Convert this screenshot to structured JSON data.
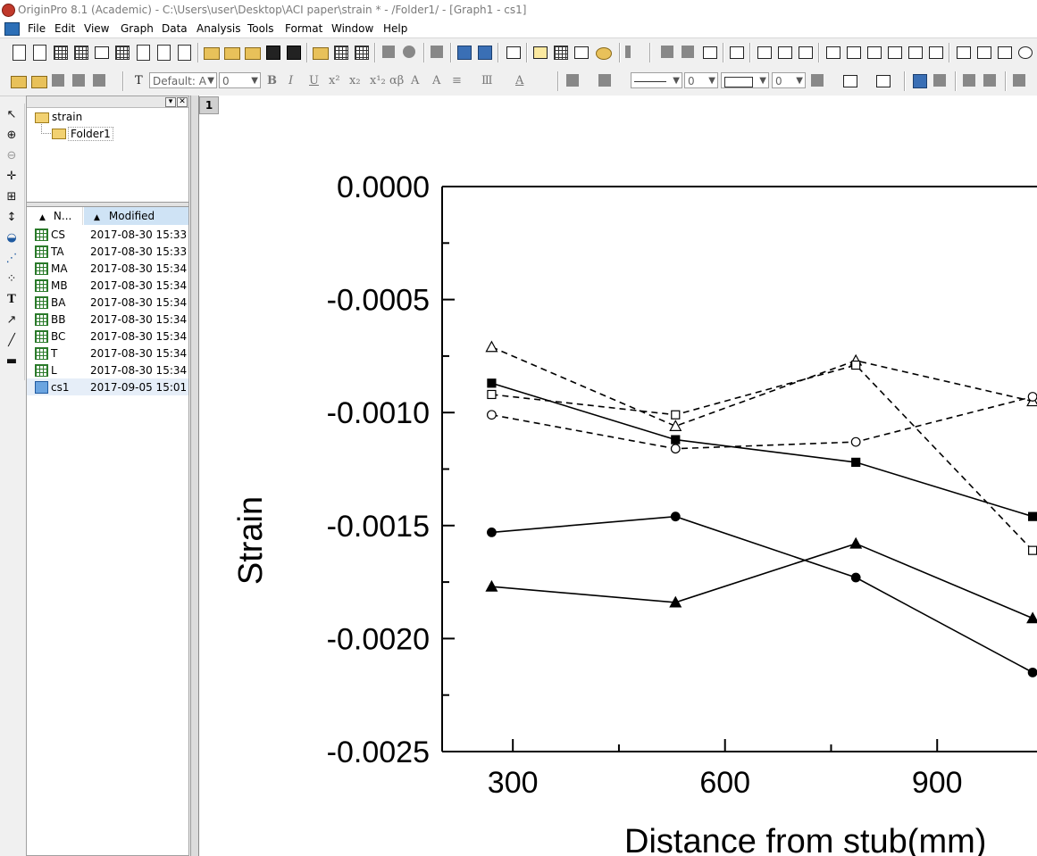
{
  "window": {
    "title": "OriginPro 8.1 (Academic) - C:\\Users\\user\\Desktop\\ACI paper\\strain * - /Folder1/ - [Graph1 - cs1]"
  },
  "menu": [
    "File",
    "Edit",
    "View",
    "Graph",
    "Data",
    "Analysis",
    "Tools",
    "Format",
    "Window",
    "Help"
  ],
  "format_toolbar": {
    "font_combo": "Default: A",
    "size_combo": "0",
    "line_width_combo": "0",
    "border_width_combo": "0"
  },
  "explorer": {
    "tree": {
      "root": "strain",
      "child": "Folder1"
    },
    "columns": {
      "name": "N...",
      "modified": "Modified"
    },
    "items": [
      {
        "name": "CS",
        "modified": "2017-08-30 15:33",
        "type": "workbook"
      },
      {
        "name": "TA",
        "modified": "2017-08-30 15:33",
        "type": "workbook"
      },
      {
        "name": "MA",
        "modified": "2017-08-30 15:34",
        "type": "workbook"
      },
      {
        "name": "MB",
        "modified": "2017-08-30 15:34",
        "type": "workbook"
      },
      {
        "name": "BA",
        "modified": "2017-08-30 15:34",
        "type": "workbook"
      },
      {
        "name": "BB",
        "modified": "2017-08-30 15:34",
        "type": "workbook"
      },
      {
        "name": "BC",
        "modified": "2017-08-30 15:34",
        "type": "workbook"
      },
      {
        "name": "T",
        "modified": "2017-08-30 15:34",
        "type": "workbook"
      },
      {
        "name": "L",
        "modified": "2017-08-30 15:34",
        "type": "workbook"
      },
      {
        "name": "cs1",
        "modified": "2017-09-05 15:01",
        "type": "graph"
      }
    ]
  },
  "graph": {
    "layer_label": "1"
  },
  "chart_data": {
    "type": "line",
    "title": "",
    "xlabel": "Distance from stub(mm)",
    "ylabel": "Strain",
    "xticks": [
      300,
      600,
      900
    ],
    "xtick_labels": [
      "300",
      "600",
      "900"
    ],
    "xlim": [
      200,
      1050
    ],
    "yticks": [
      0.0,
      -0.0005,
      -0.001,
      -0.0015,
      -0.002,
      -0.0025
    ],
    "ytick_labels": [
      "0.0000",
      "-0.0005",
      "-0.0010",
      "-0.0015",
      "-0.0020",
      "-0.0025"
    ],
    "ylim": [
      -0.0025,
      0.0
    ],
    "legend": "none",
    "grid": false,
    "x": [
      270,
      530,
      785,
      1035
    ],
    "series": [
      {
        "marker": "filled-square",
        "dash": "solid",
        "values": [
          -0.00087,
          -0.00112,
          -0.00122,
          -0.00146
        ]
      },
      {
        "marker": "filled-circle",
        "dash": "solid",
        "values": [
          -0.00153,
          -0.00146,
          -0.00173,
          -0.00215
        ]
      },
      {
        "marker": "filled-triangle",
        "dash": "solid",
        "values": [
          -0.00177,
          -0.00184,
          -0.00158,
          -0.00191
        ]
      },
      {
        "marker": "open-triangle",
        "dash": "dashed",
        "values": [
          -0.00071,
          -0.00106,
          -0.00077,
          -0.00095
        ]
      },
      {
        "marker": "open-square",
        "dash": "dashed",
        "values": [
          -0.00092,
          -0.00101,
          -0.00079,
          -0.00161
        ]
      },
      {
        "marker": "open-circle",
        "dash": "dashed",
        "values": [
          -0.00101,
          -0.00116,
          -0.00113,
          -0.00093
        ]
      }
    ]
  }
}
